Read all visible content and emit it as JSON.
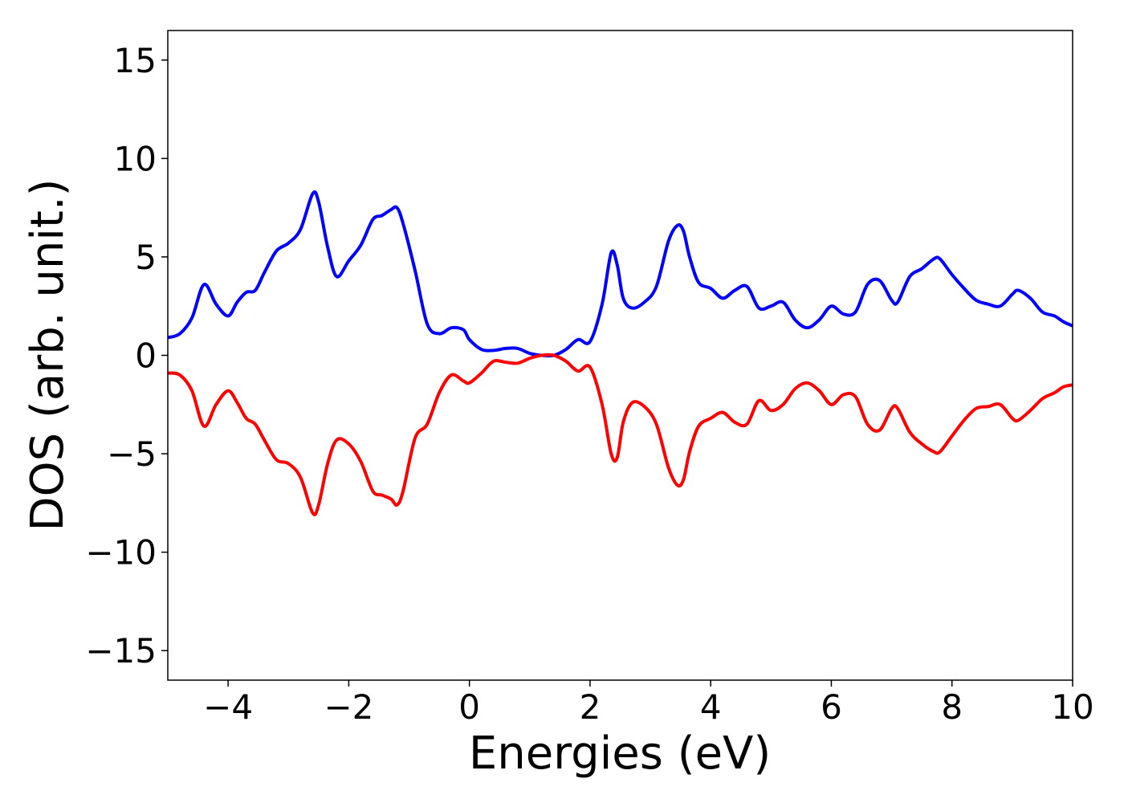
{
  "chart_data": {
    "type": "line",
    "title": "",
    "xlabel": "Energies (eV)",
    "ylabel": "DOS (arb. unit.)",
    "xlim": [
      -5,
      10
    ],
    "ylim": [
      -16.5,
      16.5
    ],
    "xticks": [
      -4,
      -2,
      0,
      2,
      4,
      6,
      8,
      10
    ],
    "xtick_labels": [
      "−4",
      "−2",
      "0",
      "2",
      "4",
      "6",
      "8",
      "10"
    ],
    "yticks": [
      -15,
      -10,
      -5,
      0,
      5,
      10,
      15
    ],
    "ytick_labels": [
      "−15",
      "−10",
      "−5",
      "0",
      "5",
      "10",
      "15"
    ],
    "grid": false,
    "legend": "none",
    "series": [
      {
        "color": "#0000ff",
        "x": [
          -5.0,
          -4.8,
          -4.6,
          -4.4,
          -4.2,
          -4.0,
          -3.85,
          -3.7,
          -3.55,
          -3.4,
          -3.2,
          -3.0,
          -2.8,
          -2.6,
          -2.5,
          -2.35,
          -2.2,
          -2.0,
          -1.8,
          -1.6,
          -1.45,
          -1.3,
          -1.2,
          -1.1,
          -0.9,
          -0.7,
          -0.5,
          -0.3,
          -0.1,
          0.0,
          0.2,
          0.4,
          0.6,
          0.8,
          1.0,
          1.2,
          1.4,
          1.6,
          1.8,
          2.0,
          2.2,
          2.35,
          2.45,
          2.55,
          2.7,
          2.9,
          3.1,
          3.3,
          3.45,
          3.55,
          3.65,
          3.8,
          4.0,
          4.2,
          4.4,
          4.6,
          4.8,
          5.0,
          5.2,
          5.4,
          5.6,
          5.8,
          6.0,
          6.2,
          6.4,
          6.6,
          6.8,
          7.0,
          7.1,
          7.3,
          7.5,
          7.7,
          7.8,
          8.0,
          8.2,
          8.4,
          8.6,
          8.8,
          9.0,
          9.1,
          9.3,
          9.5,
          9.7,
          9.85,
          10.0
        ],
        "y": [
          0.9,
          1.1,
          1.9,
          3.6,
          2.6,
          2.0,
          2.7,
          3.2,
          3.3,
          4.2,
          5.3,
          5.7,
          6.4,
          8.2,
          7.8,
          5.5,
          4.0,
          4.8,
          5.6,
          6.9,
          7.1,
          7.4,
          7.5,
          6.7,
          4.3,
          1.6,
          1.1,
          1.4,
          1.3,
          0.8,
          0.3,
          0.25,
          0.35,
          0.35,
          0.1,
          0.0,
          0.0,
          0.3,
          0.8,
          0.7,
          2.6,
          5.2,
          4.6,
          2.9,
          2.4,
          2.7,
          3.5,
          5.8,
          6.6,
          6.3,
          5.0,
          3.7,
          3.4,
          2.9,
          3.3,
          3.5,
          2.4,
          2.5,
          2.7,
          1.8,
          1.4,
          1.8,
          2.5,
          2.1,
          2.2,
          3.6,
          3.8,
          2.8,
          2.7,
          4.0,
          4.4,
          4.9,
          4.9,
          4.1,
          3.4,
          2.8,
          2.6,
          2.5,
          3.1,
          3.3,
          2.9,
          2.2,
          2.0,
          1.7,
          1.5
        ]
      },
      {
        "color": "#ff0000",
        "x": [
          -5.0,
          -4.8,
          -4.6,
          -4.4,
          -4.2,
          -4.0,
          -3.85,
          -3.7,
          -3.55,
          -3.4,
          -3.2,
          -3.0,
          -2.8,
          -2.6,
          -2.5,
          -2.35,
          -2.2,
          -2.0,
          -1.8,
          -1.6,
          -1.45,
          -1.3,
          -1.2,
          -1.1,
          -0.9,
          -0.7,
          -0.5,
          -0.3,
          -0.1,
          0.0,
          0.2,
          0.4,
          0.6,
          0.8,
          1.0,
          1.2,
          1.4,
          1.6,
          1.8,
          2.0,
          2.2,
          2.35,
          2.45,
          2.55,
          2.7,
          2.9,
          3.1,
          3.3,
          3.45,
          3.55,
          3.65,
          3.8,
          4.0,
          4.2,
          4.4,
          4.6,
          4.8,
          5.0,
          5.2,
          5.4,
          5.6,
          5.8,
          6.0,
          6.2,
          6.4,
          6.6,
          6.8,
          7.0,
          7.1,
          7.3,
          7.5,
          7.7,
          7.8,
          8.0,
          8.2,
          8.4,
          8.6,
          8.8,
          9.0,
          9.1,
          9.3,
          9.5,
          9.7,
          9.85,
          10.0
        ],
        "y": [
          -0.9,
          -1.0,
          -1.8,
          -3.6,
          -2.5,
          -1.8,
          -2.4,
          -3.2,
          -3.5,
          -4.3,
          -5.3,
          -5.5,
          -6.2,
          -8.0,
          -7.6,
          -5.5,
          -4.3,
          -4.5,
          -5.4,
          -6.9,
          -7.1,
          -7.3,
          -7.6,
          -6.9,
          -4.2,
          -3.5,
          -1.9,
          -1.0,
          -1.3,
          -1.4,
          -0.9,
          -0.3,
          -0.35,
          -0.4,
          -0.15,
          0.0,
          0.0,
          -0.3,
          -0.8,
          -0.6,
          -2.5,
          -5.0,
          -5.2,
          -3.4,
          -2.4,
          -2.6,
          -3.5,
          -5.7,
          -6.6,
          -6.3,
          -4.9,
          -3.6,
          -3.2,
          -2.9,
          -3.4,
          -3.5,
          -2.3,
          -2.8,
          -2.5,
          -1.7,
          -1.4,
          -1.8,
          -2.5,
          -2.0,
          -2.1,
          -3.5,
          -3.8,
          -2.7,
          -2.7,
          -3.9,
          -4.5,
          -4.9,
          -4.9,
          -4.1,
          -3.3,
          -2.7,
          -2.6,
          -2.5,
          -3.2,
          -3.3,
          -2.8,
          -2.2,
          -1.9,
          -1.6,
          -1.5
        ]
      }
    ]
  }
}
